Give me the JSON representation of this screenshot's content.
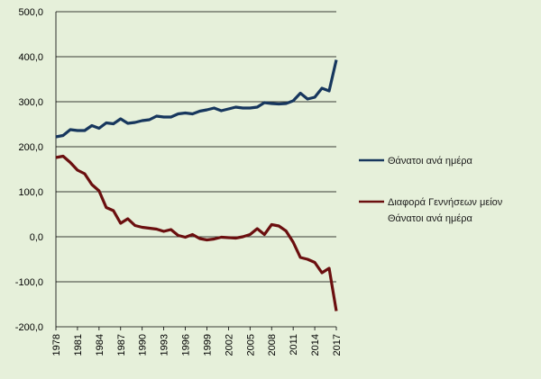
{
  "chart_data": {
    "type": "line",
    "title": "",
    "xlabel": "",
    "ylabel": "",
    "ylim": [
      -200,
      500
    ],
    "y_ticks": [
      500,
      400,
      300,
      200,
      100,
      0,
      -100,
      -200
    ],
    "y_tick_labels": [
      "500,0",
      "400,0",
      "300,0",
      "200,0",
      "100,0",
      "0,0",
      "-100,0",
      "-200,0"
    ],
    "x": [
      1978,
      1979,
      1980,
      1981,
      1982,
      1983,
      1984,
      1985,
      1986,
      1987,
      1988,
      1989,
      1990,
      1991,
      1992,
      1993,
      1994,
      1995,
      1996,
      1997,
      1998,
      1999,
      2000,
      2001,
      2002,
      2003,
      2004,
      2005,
      2006,
      2007,
      2008,
      2009,
      2010,
      2011,
      2012,
      2013,
      2014,
      2015,
      2016,
      2017
    ],
    "x_ticks": [
      1978,
      1981,
      1984,
      1987,
      1990,
      1993,
      1996,
      1999,
      2002,
      2005,
      2008,
      2011,
      2014,
      2017
    ],
    "grid": "horizontal",
    "legend_position": "right",
    "series": [
      {
        "name": "Θάνατοι ανά ημέρα",
        "color": "#17375e",
        "values": [
          222,
          225,
          238,
          236,
          236,
          247,
          241,
          253,
          251,
          262,
          252,
          254,
          258,
          260,
          268,
          266,
          266,
          273,
          275,
          273,
          279,
          282,
          286,
          280,
          284,
          288,
          286,
          286,
          288,
          298,
          296,
          295,
          296,
          302,
          319,
          306,
          310,
          330,
          324,
          393
        ]
      },
      {
        "name": "Διαφορά Γεννήσεων μείον Θάνατοι ανά ημέρα",
        "legend_lines": [
          "Διαφορά Γεννήσεων μείον",
          "Θάνατοι ανά ημέρα"
        ],
        "color": "#6b0f0f",
        "values": [
          176,
          179,
          165,
          148,
          140,
          116,
          102,
          65,
          58,
          30,
          40,
          25,
          21,
          19,
          17,
          12,
          16,
          3,
          -1,
          5,
          -4,
          -7,
          -5,
          -1,
          -2,
          -3,
          0,
          5,
          18,
          5,
          27,
          24,
          13,
          -12,
          -46,
          -50,
          -57,
          -80,
          -70,
          -165
        ]
      }
    ]
  }
}
